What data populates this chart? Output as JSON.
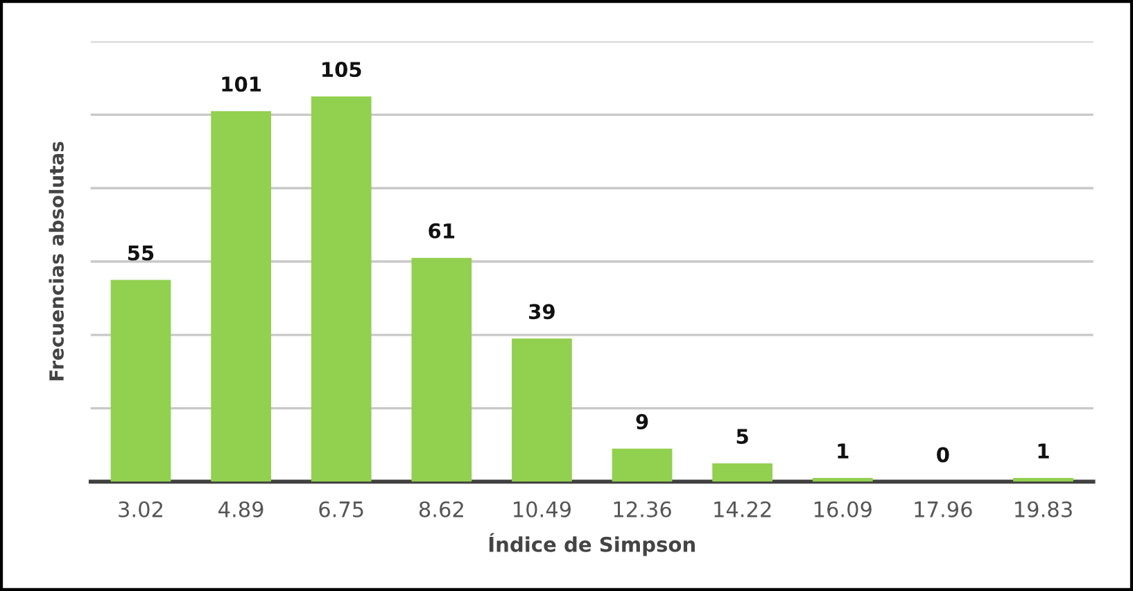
{
  "chart_data": {
    "type": "bar",
    "xlabel": "Índice de Simpson",
    "ylabel": "Frecuencias absolutas",
    "categories": [
      "3.02",
      "4.89",
      "6.75",
      "8.62",
      "10.49",
      "12.36",
      "14.22",
      "16.09",
      "17.96",
      "19.83"
    ],
    "values": [
      55,
      101,
      105,
      61,
      39,
      9,
      5,
      1,
      0,
      1
    ],
    "color": "#92d050",
    "ylim": [
      0,
      120
    ],
    "yticks": [
      {
        "value": 0,
        "label": null
      },
      {
        "value": 20,
        "label": null
      },
      {
        "value": 40,
        "label": null
      },
      {
        "value": 60,
        "label": null
      },
      {
        "value": 80,
        "label": null
      },
      {
        "value": 100,
        "label": null
      },
      {
        "value": 120,
        "label": null
      }
    ],
    "tick_labels": "x",
    "grid": "y",
    "data_labels": true
  }
}
